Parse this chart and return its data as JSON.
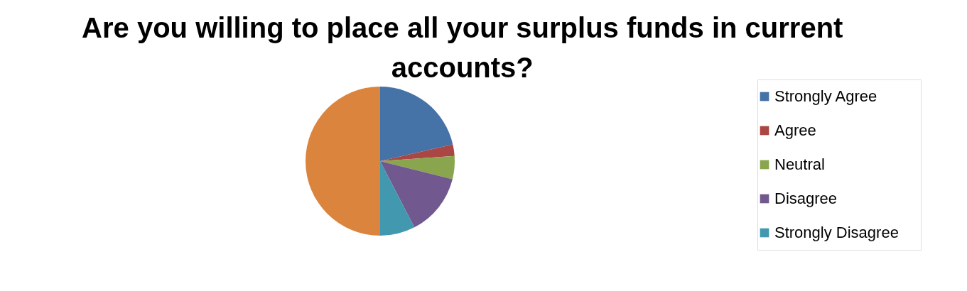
{
  "chart_data": {
    "type": "pie",
    "title": "Are you willing to place all your surplus funds in current accounts?",
    "categories": [
      "Strongly Agree",
      "Agree",
      "Neutral",
      "Disagree",
      "Strongly Disagree",
      null
    ],
    "values": [
      21.4,
      2.5,
      5,
      13.5,
      7.6,
      50
    ],
    "colors": [
      "#4572a7",
      "#aa4643",
      "#89a54e",
      "#71588f",
      "#4198af",
      "#db843d"
    ],
    "legend": "right"
  }
}
